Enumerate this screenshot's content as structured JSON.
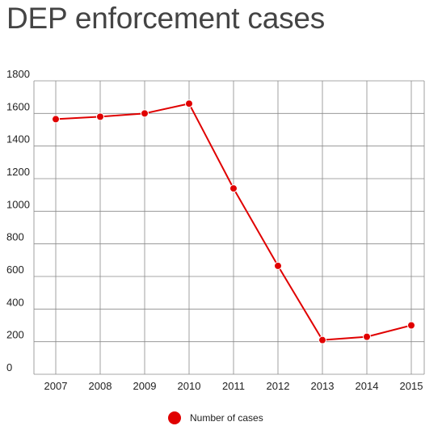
{
  "chart_data": {
    "type": "line",
    "title": "DEP enforcement cases",
    "xlabel": "",
    "ylabel": "",
    "categories": [
      "2007",
      "2008",
      "2009",
      "2010",
      "2011",
      "2012",
      "2013",
      "2014",
      "2015"
    ],
    "series": [
      {
        "name": "Number of cases",
        "values": [
          1565,
          1580,
          1600,
          1660,
          1140,
          665,
          210,
          230,
          300
        ]
      }
    ],
    "ylim": [
      0,
      1800
    ],
    "yticks": [
      "0",
      "200",
      "400",
      "600",
      "800",
      "1000",
      "1200",
      "1400",
      "1600",
      "1800"
    ],
    "grid": true,
    "legend_position": "bottom-center",
    "colors": {
      "series": "#e00000",
      "grid": "#8a8a8a",
      "title": "#444444"
    }
  }
}
